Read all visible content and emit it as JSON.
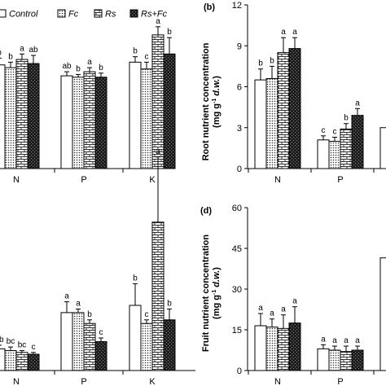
{
  "legend": {
    "items": [
      {
        "label": "Control",
        "pattern": "white"
      },
      {
        "label": "Fc",
        "pattern": "dots"
      },
      {
        "label": "Rs",
        "pattern": "brick"
      },
      {
        "label": "Rs+Fc",
        "pattern": "dark"
      }
    ]
  },
  "colors": {
    "bar_stroke": "#000000",
    "dark_fill": "#1a1a1a",
    "background": "#ffffff"
  },
  "chart_data": [
    {
      "panel": "",
      "type": "bar",
      "title": "",
      "ylabel": "",
      "yticks": [],
      "ylim": [
        0,
        12
      ],
      "categories": [
        "N",
        "P",
        "K"
      ],
      "series": [
        {
          "name": "Control",
          "values": [
            7.6,
            6.8,
            7.8
          ],
          "errors": [
            0.5,
            0.3,
            0.4
          ],
          "letters": [
            "b",
            "ab",
            "b"
          ]
        },
        {
          "name": "Fc",
          "values": [
            7.4,
            6.7,
            7.3
          ],
          "errors": [
            0.4,
            0.2,
            0.5
          ],
          "letters": [
            "b",
            "b",
            "c"
          ]
        },
        {
          "name": "Rs",
          "values": [
            8.0,
            7.1,
            9.8
          ],
          "errors": [
            0.4,
            0.3,
            0.6
          ],
          "letters": [
            "a",
            "a",
            "a"
          ]
        },
        {
          "name": "Rs+Fc",
          "values": [
            7.7,
            6.7,
            8.4
          ],
          "errors": [
            0.6,
            0.3,
            1.2
          ],
          "letters": [
            "ab",
            "b",
            "b"
          ]
        }
      ]
    },
    {
      "panel": "(b)",
      "type": "bar",
      "title": "",
      "ylabel": "Root nutrient concentration",
      "ylabel_unit_prefix": "(mg g",
      "ylabel_unit_sup": "-1",
      "ylabel_unit_italic": "d.w.",
      "ylabel_unit_suffix": ")",
      "ylim": [
        0,
        12
      ],
      "yticks": [
        "0",
        "3",
        "6",
        "9",
        "12"
      ],
      "categories": [
        "N",
        "P",
        ""
      ],
      "series": [
        {
          "name": "Control",
          "values": [
            6.5,
            2.1,
            3.0
          ],
          "errors": [
            0.8,
            0.3,
            0
          ],
          "letters": [
            "b",
            "c",
            ""
          ]
        },
        {
          "name": "Fc",
          "values": [
            6.6,
            2.0,
            null
          ],
          "errors": [
            0.9,
            0.3,
            0
          ],
          "letters": [
            "b",
            "c",
            ""
          ]
        },
        {
          "name": "Rs",
          "values": [
            8.5,
            2.9,
            null
          ],
          "errors": [
            1.1,
            0.4,
            0
          ],
          "letters": [
            "a",
            "b",
            ""
          ]
        },
        {
          "name": "Rs+Fc",
          "values": [
            8.8,
            3.9,
            null
          ],
          "errors": [
            0.8,
            0.5,
            0
          ],
          "letters": [
            "a",
            "a",
            ""
          ]
        }
      ]
    },
    {
      "panel": "",
      "type": "bar",
      "title": "",
      "ylabel": "",
      "yticks": [],
      "ylim": [
        0,
        12
      ],
      "categories": [
        "N",
        "P",
        "K"
      ],
      "series": [
        {
          "name": "Control",
          "values": [
            0.6,
            1.6,
            1.8
          ],
          "errors": [
            0.1,
            0.3,
            0.6
          ],
          "letters": [
            "ab",
            "a",
            "b"
          ]
        },
        {
          "name": "Fc",
          "values": [
            0.55,
            1.6,
            1.3
          ],
          "errors": [
            0.1,
            0.1,
            0.1
          ],
          "letters": [
            "bc",
            "a",
            "c"
          ]
        },
        {
          "name": "Rs",
          "values": [
            0.5,
            1.3,
            4.1
          ],
          "errors": [
            0.05,
            0.1,
            1.8
          ],
          "letters": [
            "bc",
            "b",
            "a"
          ]
        },
        {
          "name": "Rs+Fc",
          "values": [
            0.45,
            0.8,
            1.4
          ],
          "errors": [
            0.05,
            0.1,
            0.3
          ],
          "letters": [
            "c",
            "c",
            "b"
          ]
        }
      ]
    },
    {
      "panel": "(d)",
      "type": "bar",
      "title": "",
      "ylabel": "Fruit nutrient concentration",
      "ylabel_unit_prefix": "(mg g",
      "ylabel_unit_sup": "-1",
      "ylabel_unit_italic": "d.w.",
      "ylabel_unit_suffix": ")",
      "ylim": [
        0,
        60
      ],
      "yticks": [
        "0",
        "15",
        "30",
        "45",
        "60"
      ],
      "categories": [
        "N",
        "P",
        ""
      ],
      "series": [
        {
          "name": "Control",
          "values": [
            16.5,
            8.0,
            41.5
          ],
          "errors": [
            4.5,
            1.5,
            0
          ],
          "letters": [
            "a",
            "a",
            ""
          ]
        },
        {
          "name": "Fc",
          "values": [
            16.0,
            7.5,
            null
          ],
          "errors": [
            3.0,
            1.5,
            0
          ],
          "letters": [
            "a",
            "a",
            ""
          ]
        },
        {
          "name": "Rs",
          "values": [
            15.5,
            7.0,
            null
          ],
          "errors": [
            5.0,
            2.0,
            0
          ],
          "letters": [
            "a",
            "a",
            ""
          ]
        },
        {
          "name": "Rs+Fc",
          "values": [
            17.5,
            7.5,
            null
          ],
          "errors": [
            6.0,
            1.5,
            0
          ],
          "letters": [
            "a",
            "a",
            ""
          ]
        }
      ]
    }
  ]
}
